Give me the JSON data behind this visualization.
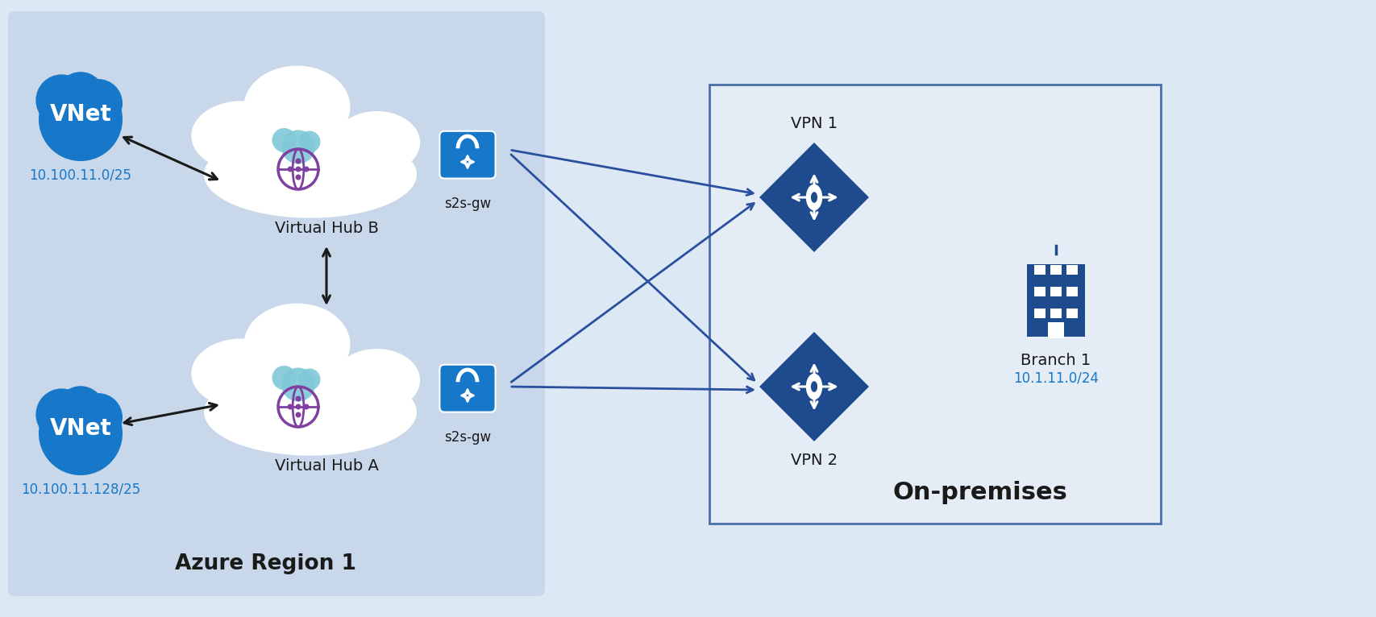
{
  "bg_color": "#dce9f5",
  "azure_bg_color": "#c8d8ea",
  "onprem_box_bg": "#e4ecf5",
  "onprem_box_border": "#4a6fa8",
  "cloud_fill": "white",
  "cloud_stroke": "#9ab0cc",
  "vnet_blue": "#1777c8",
  "vpn_blue": "#1e4b8e",
  "lock_blue": "#1777c8",
  "hub_icon_purple": "#8040a0",
  "hub_icon_cyan": "#80c8d8",
  "arrow_blue": "#2a4f9e",
  "arrow_black": "#1a1a1a",
  "text_black": "#1a1a1a",
  "text_blue": "#1777c8",
  "azure_region_label": "Azure Region 1",
  "onprem_label": "On-premises",
  "branch_label": "Branch 1",
  "branch_ip": "10.1.11.0/24",
  "vnet_label": "VNet",
  "vnet_b_ip": "10.100.11.0/25",
  "vnet_a_ip": "10.100.11.128/25",
  "hub_b_label": "Virtual Hub B",
  "hub_a_label": "Virtual Hub A",
  "s2sgw_label": "s2s-gw",
  "vpn1_label": "VPN 1",
  "vpn2_label": "VPN 2"
}
